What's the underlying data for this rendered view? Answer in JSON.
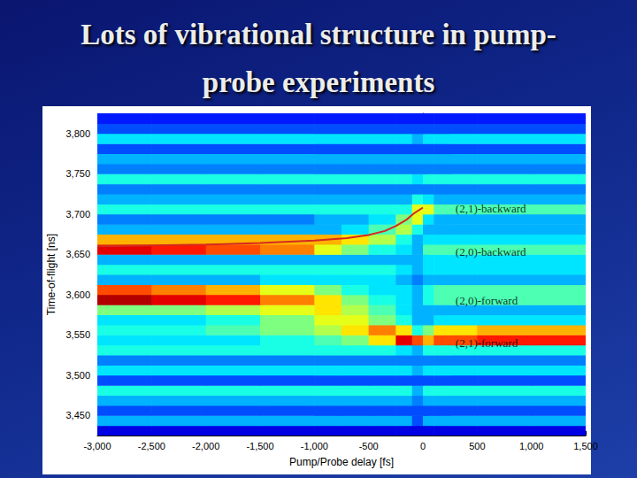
{
  "chart_data": {
    "type": "heatmap",
    "title": "Lots of vibrational structure in pump-probe experiments",
    "x_label": "Pump/Probe delay [fs]",
    "y_label": "Time-of-flight [ns]",
    "xlim": [
      -3000,
      1500
    ],
    "xticks": [
      -3000,
      -2500,
      -2000,
      -1500,
      -1000,
      -500,
      0,
      500,
      1000,
      1500
    ],
    "ylim": [
      3425,
      3825
    ],
    "yticks": [
      3450,
      3500,
      3550,
      3600,
      3650,
      3700,
      3750,
      3800
    ],
    "grid": false,
    "z_range": [
      0,
      10
    ],
    "x_bins": [
      -3000,
      -2500,
      -2000,
      -1500,
      -1000,
      -750,
      -500,
      -250,
      -100,
      0,
      100,
      250,
      500,
      1000,
      1500
    ],
    "y_bins": [
      3425,
      3437.5,
      3450,
      3462.5,
      3475,
      3487.5,
      3500,
      3512.5,
      3525,
      3537.5,
      3550,
      3562.5,
      3575,
      3587.5,
      3600,
      3612.5,
      3625,
      3637.5,
      3650,
      3662.5,
      3675,
      3687.5,
      3700,
      3712.5,
      3725,
      3737.5,
      3750,
      3762.5,
      3775,
      3787.5,
      3800,
      3812.5,
      3825
    ],
    "z": [
      [
        1,
        1,
        1,
        1,
        1,
        1,
        1,
        1,
        1,
        1,
        1,
        1,
        1,
        1
      ],
      [
        3,
        3,
        3,
        3,
        3,
        3,
        3,
        3,
        2,
        3,
        3,
        3,
        3,
        3
      ],
      [
        2,
        2,
        2,
        2,
        2,
        2,
        2,
        2,
        2,
        2,
        2,
        2,
        2,
        2
      ],
      [
        3,
        3,
        3,
        3,
        3,
        3,
        3,
        3,
        2.5,
        3,
        3,
        3,
        3,
        3
      ],
      [
        4,
        4,
        4,
        4,
        4,
        4,
        4,
        4,
        3,
        4,
        4,
        4,
        4,
        4
      ],
      [
        2,
        2,
        2,
        2,
        2,
        2,
        2,
        2,
        2,
        2,
        2,
        2,
        2,
        2
      ],
      [
        3.5,
        3.5,
        3.5,
        3.5,
        3.5,
        3.5,
        3.5,
        3.5,
        3,
        3.5,
        3.5,
        3.5,
        3.5,
        3.5
      ],
      [
        2.5,
        2.5,
        2.5,
        2.5,
        2.5,
        2.5,
        2.5,
        2.5,
        2.5,
        2.5,
        2.5,
        2.5,
        2.5,
        2.5
      ],
      [
        4,
        4,
        4,
        4,
        4,
        4,
        4,
        3.5,
        3,
        4,
        4,
        4,
        4,
        4
      ],
      [
        3.5,
        3.5,
        3.5,
        4,
        4.5,
        5,
        6.5,
        9,
        8,
        7,
        8,
        8,
        8.5,
        8.5
      ],
      [
        4,
        4,
        4.5,
        5,
        5.5,
        6.5,
        7.5,
        6.5,
        4,
        5,
        6.5,
        6.5,
        7,
        7
      ],
      [
        3.5,
        3.5,
        4,
        5,
        6,
        6,
        5,
        4,
        3,
        3,
        3.5,
        3.5,
        3.5,
        3.5
      ],
      [
        5,
        5,
        5.5,
        6,
        6.5,
        5.5,
        4.5,
        3.5,
        3,
        3,
        3,
        3,
        3,
        3
      ],
      [
        9.5,
        9,
        8.5,
        7.5,
        6.5,
        5,
        4,
        3.5,
        3,
        4,
        4.5,
        4.5,
        4.5,
        4.5
      ],
      [
        8,
        7.5,
        7,
        6,
        5,
        4,
        3.5,
        3.5,
        3,
        4,
        4.5,
        4.5,
        4.5,
        4.5
      ],
      [
        3,
        3,
        3,
        3.5,
        3.5,
        3.5,
        3.5,
        3,
        2.5,
        3,
        3,
        3,
        3,
        3
      ],
      [
        4,
        4,
        4,
        4,
        4,
        4,
        4,
        3.5,
        3,
        3.5,
        3.5,
        3.5,
        3.5,
        3.5
      ],
      [
        3,
        3,
        3,
        3,
        3,
        3,
        3,
        3,
        3,
        3.5,
        3.5,
        3.5,
        3.5,
        3.5
      ],
      [
        9,
        8.5,
        8,
        7.5,
        6,
        5,
        4,
        3.5,
        3,
        4.5,
        4.5,
        4.5,
        4.5,
        4.5
      ],
      [
        7,
        7,
        7,
        7,
        7,
        6.5,
        5.5,
        4,
        3,
        3.5,
        3.5,
        3.5,
        3.5,
        3.5
      ],
      [
        3,
        3,
        3,
        3,
        3,
        3.5,
        4.5,
        5.5,
        4,
        3,
        3,
        3,
        3,
        3
      ],
      [
        2.5,
        2.5,
        2.5,
        2.5,
        3,
        3,
        3.5,
        5,
        6,
        3.5,
        3,
        3,
        3,
        3
      ],
      [
        4,
        4,
        4,
        4,
        4,
        4,
        4,
        4,
        6,
        6,
        4.5,
        4.5,
        4.5,
        4.5
      ],
      [
        3,
        3,
        3,
        3,
        3,
        3,
        3,
        3,
        4,
        3.5,
        3,
        3,
        3,
        3
      ],
      [
        2.5,
        2.5,
        2.5,
        2.5,
        2.5,
        2.5,
        2.5,
        2.5,
        2.5,
        2.5,
        2.5,
        2.5,
        2.5,
        2.5
      ],
      [
        4,
        4,
        4,
        4,
        4,
        4,
        4,
        4,
        3.5,
        4,
        4,
        4,
        4,
        4
      ],
      [
        2.5,
        2.5,
        2.5,
        2.5,
        2.5,
        2.5,
        2.5,
        2.5,
        2.5,
        2.5,
        2.5,
        2.5,
        2.5,
        2.5
      ],
      [
        3,
        3,
        3,
        3,
        3,
        3,
        3,
        3,
        3,
        3,
        3,
        3,
        3,
        3
      ],
      [
        2,
        2,
        2,
        2,
        2,
        2,
        2,
        2,
        2,
        2,
        2,
        2,
        2,
        2
      ],
      [
        3.5,
        3.5,
        3.5,
        3.5,
        3.5,
        3.5,
        3.5,
        3.5,
        3,
        3.5,
        3.5,
        3.5,
        3.5,
        3.5
      ],
      [
        2,
        2,
        2,
        2,
        2,
        2,
        2,
        2,
        2,
        2,
        2,
        2,
        2,
        2
      ],
      [
        1.5,
        1.5,
        1.5,
        1.5,
        1.5,
        1.5,
        1.5,
        1.5,
        1.5,
        1.5,
        1.5,
        1.5,
        1.5,
        1.5
      ]
    ],
    "curve": {
      "color": "#d42a1e",
      "line_style": "solid",
      "x": [
        -3000,
        -2000,
        -1500,
        -1000,
        -700,
        -500,
        -350,
        -250,
        -150,
        -80,
        0
      ],
      "y": [
        3660,
        3662,
        3664,
        3667,
        3670,
        3674,
        3679,
        3685,
        3693,
        3701,
        3708
      ]
    },
    "annotations": [
      {
        "text": "(2,1)-backward",
        "x": 300,
        "y": 3707
      },
      {
        "text": "(2,0)-backward",
        "x": 300,
        "y": 3653
      },
      {
        "text": "(2,0)-forward",
        "x": 300,
        "y": 3593
      },
      {
        "text": "(2,1)-forward",
        "x": 300,
        "y": 3540
      }
    ]
  }
}
